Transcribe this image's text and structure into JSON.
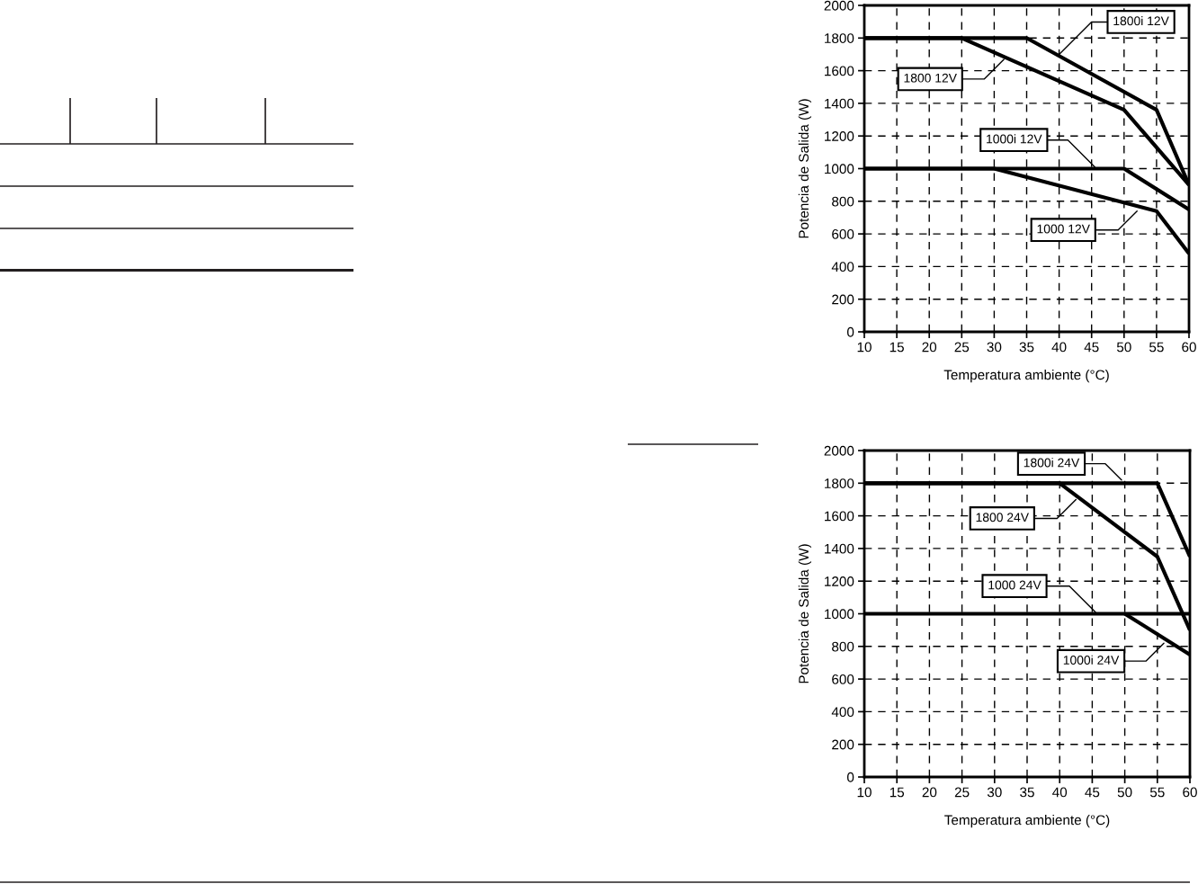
{
  "chart_data": [
    {
      "type": "line",
      "xlabel": "Temperatura ambiente (°C)",
      "ylabel": "Potencia de Salida (W)",
      "xlim": [
        10,
        60
      ],
      "ylim": [
        0,
        2000
      ],
      "xticks": [
        10,
        15,
        20,
        25,
        30,
        35,
        40,
        45,
        50,
        55,
        60
      ],
      "yticks": [
        0,
        200,
        400,
        600,
        800,
        1000,
        1200,
        1400,
        1600,
        1800,
        2000
      ],
      "grid": true,
      "series": [
        {
          "color": "#000000",
          "x": [
            10,
            35,
            55,
            60
          ],
          "values": [
            1800,
            1800,
            1360,
            900
          ]
        },
        {
          "color": "#000000",
          "x": [
            10,
            25,
            50,
            60
          ],
          "values": [
            1800,
            1800,
            1360,
            900
          ]
        },
        {
          "color": "#000000",
          "x": [
            10,
            50,
            60
          ],
          "values": [
            1000,
            1000,
            750
          ]
        },
        {
          "color": "#000000",
          "x": [
            10,
            30,
            55,
            60
          ],
          "values": [
            1000,
            1000,
            740,
            480
          ]
        }
      ],
      "annotations": [
        {
          "text": "1800i 12V",
          "x": 40,
          "y": 1700
        },
        {
          "text": "1800 12V",
          "x": 31.5,
          "y": 1670
        },
        {
          "text": "1000i 12V",
          "x": 45.5,
          "y": 1010
        },
        {
          "text": "1000 12V",
          "x": 52,
          "y": 740
        }
      ]
    },
    {
      "type": "line",
      "xlabel": "Temperatura ambiente (°C)",
      "ylabel": "Potencia de Salida (W)",
      "xlim": [
        10,
        60
      ],
      "ylim": [
        0,
        2000
      ],
      "xticks": [
        10,
        15,
        20,
        25,
        30,
        35,
        40,
        45,
        50,
        55,
        60
      ],
      "yticks": [
        0,
        200,
        400,
        600,
        800,
        1000,
        1200,
        1400,
        1600,
        1800,
        2000
      ],
      "grid": true,
      "series": [
        {
          "color": "#000000",
          "x": [
            10,
            55,
            60
          ],
          "values": [
            1800,
            1800,
            1350
          ]
        },
        {
          "color": "#000000",
          "x": [
            10,
            40,
            55,
            60
          ],
          "values": [
            1800,
            1800,
            1350,
            900
          ]
        },
        {
          "color": "#000000",
          "x": [
            10,
            60
          ],
          "values": [
            1000,
            1000
          ]
        },
        {
          "color": "#000000",
          "x": [
            50,
            60
          ],
          "values": [
            1000,
            750
          ]
        }
      ],
      "annotations": [
        {
          "text": "1800i 24V",
          "x": 49.5,
          "y": 1820
        },
        {
          "text": "1800 24V",
          "x": 42.5,
          "y": 1700
        },
        {
          "text": "1000 24V",
          "x": 45.5,
          "y": 1010
        },
        {
          "text": "1000i 24V",
          "x": 56,
          "y": 820
        }
      ]
    }
  ]
}
